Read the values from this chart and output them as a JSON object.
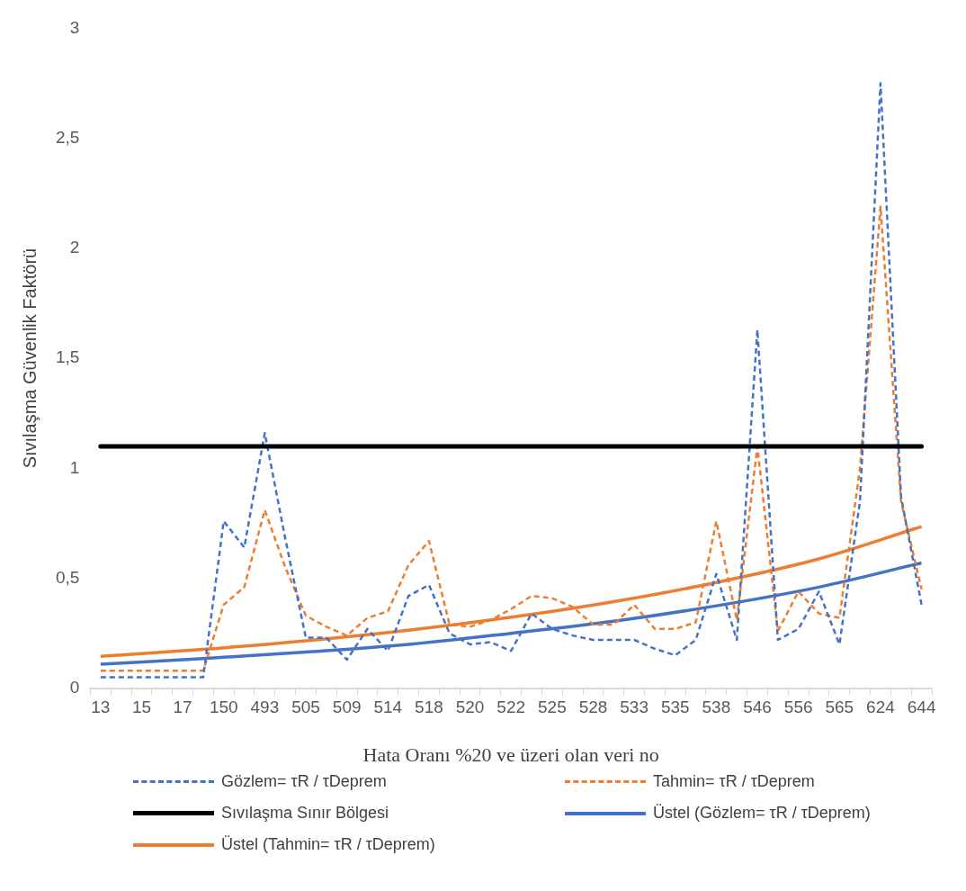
{
  "chart_data": {
    "type": "line",
    "xlabel": "Hata Oranı %20 ve üzeri olan veri no",
    "ylabel": "Sıvılaşma Güvenlik Faktörü",
    "categories": [
      "13",
      null,
      "15",
      null,
      "17",
      null,
      "150",
      null,
      "493",
      null,
      "505",
      null,
      "509",
      null,
      "514",
      null,
      "518",
      null,
      "520",
      null,
      "522",
      null,
      "525",
      null,
      "528",
      null,
      "533",
      null,
      "535",
      null,
      "538",
      null,
      "546",
      null,
      "556",
      null,
      "565",
      null,
      "624",
      null,
      "644"
    ],
    "series": [
      {
        "name": "Gözlem= τR / τDeprem",
        "color": "#4472c4",
        "line_style": "dashed",
        "values": [
          0.05,
          0.05,
          0.05,
          0.05,
          0.05,
          0.05,
          0.76,
          0.64,
          1.16,
          0.68,
          0.23,
          0.23,
          0.13,
          0.27,
          0.17,
          0.42,
          0.47,
          0.25,
          0.2,
          0.21,
          0.17,
          0.34,
          0.27,
          0.24,
          0.22,
          0.22,
          0.22,
          0.18,
          0.15,
          0.22,
          0.52,
          0.22,
          1.63,
          0.22,
          0.27,
          0.44,
          0.2,
          0.85,
          2.75,
          0.87,
          0.38
        ]
      },
      {
        "name": "Tahmin= τR / τDeprem",
        "color": "#ed7d31",
        "line_style": "dashed",
        "values": [
          0.08,
          0.08,
          0.08,
          0.08,
          0.08,
          0.08,
          0.38,
          0.46,
          0.81,
          0.55,
          0.33,
          0.28,
          0.24,
          0.32,
          0.35,
          0.56,
          0.67,
          0.29,
          0.28,
          0.31,
          0.36,
          0.42,
          0.41,
          0.37,
          0.29,
          0.29,
          0.38,
          0.27,
          0.27,
          0.3,
          0.76,
          0.31,
          1.1,
          0.26,
          0.44,
          0.34,
          0.32,
          1.0,
          2.19,
          0.85,
          0.45
        ]
      },
      {
        "name": "Üstel (Gözlem= τR / τDeprem)",
        "color": "#4472c4",
        "line_style": "solid",
        "values": [
          0.11,
          null,
          null,
          null,
          null,
          0.135,
          null,
          null,
          null,
          null,
          0.165,
          null,
          null,
          null,
          null,
          0.2,
          null,
          null,
          null,
          null,
          0.25,
          null,
          null,
          null,
          null,
          0.305,
          null,
          null,
          null,
          null,
          0.375,
          null,
          null,
          null,
          null,
          0.46,
          null,
          null,
          null,
          null,
          0.57
        ]
      },
      {
        "name": "Üstel (Tahmin= τR / τDeprem)",
        "color": "#ed7d31",
        "line_style": "solid",
        "values": [
          0.145,
          null,
          null,
          null,
          null,
          0.177,
          null,
          null,
          null,
          null,
          0.216,
          null,
          null,
          null,
          null,
          0.264,
          null,
          null,
          null,
          null,
          0.323,
          null,
          null,
          null,
          null,
          0.394,
          null,
          null,
          null,
          null,
          0.481,
          null,
          null,
          null,
          null,
          0.588,
          null,
          null,
          null,
          null,
          0.735
        ]
      }
    ],
    "ref_lines": [
      {
        "axis": "y",
        "value": 1.1,
        "label": "Sıvılaşma Sınır Bölgesi",
        "color": "#000000"
      }
    ],
    "ylim": [
      0,
      3
    ],
    "yticks": [
      0,
      {
        "value": 0.5,
        "label": "0,5"
      },
      1,
      {
        "value": 1.5,
        "label": "1,5"
      },
      2,
      {
        "value": 2.5,
        "label": "2,5"
      },
      3
    ],
    "grid": false,
    "legend": "bottom",
    "marker": "none"
  }
}
